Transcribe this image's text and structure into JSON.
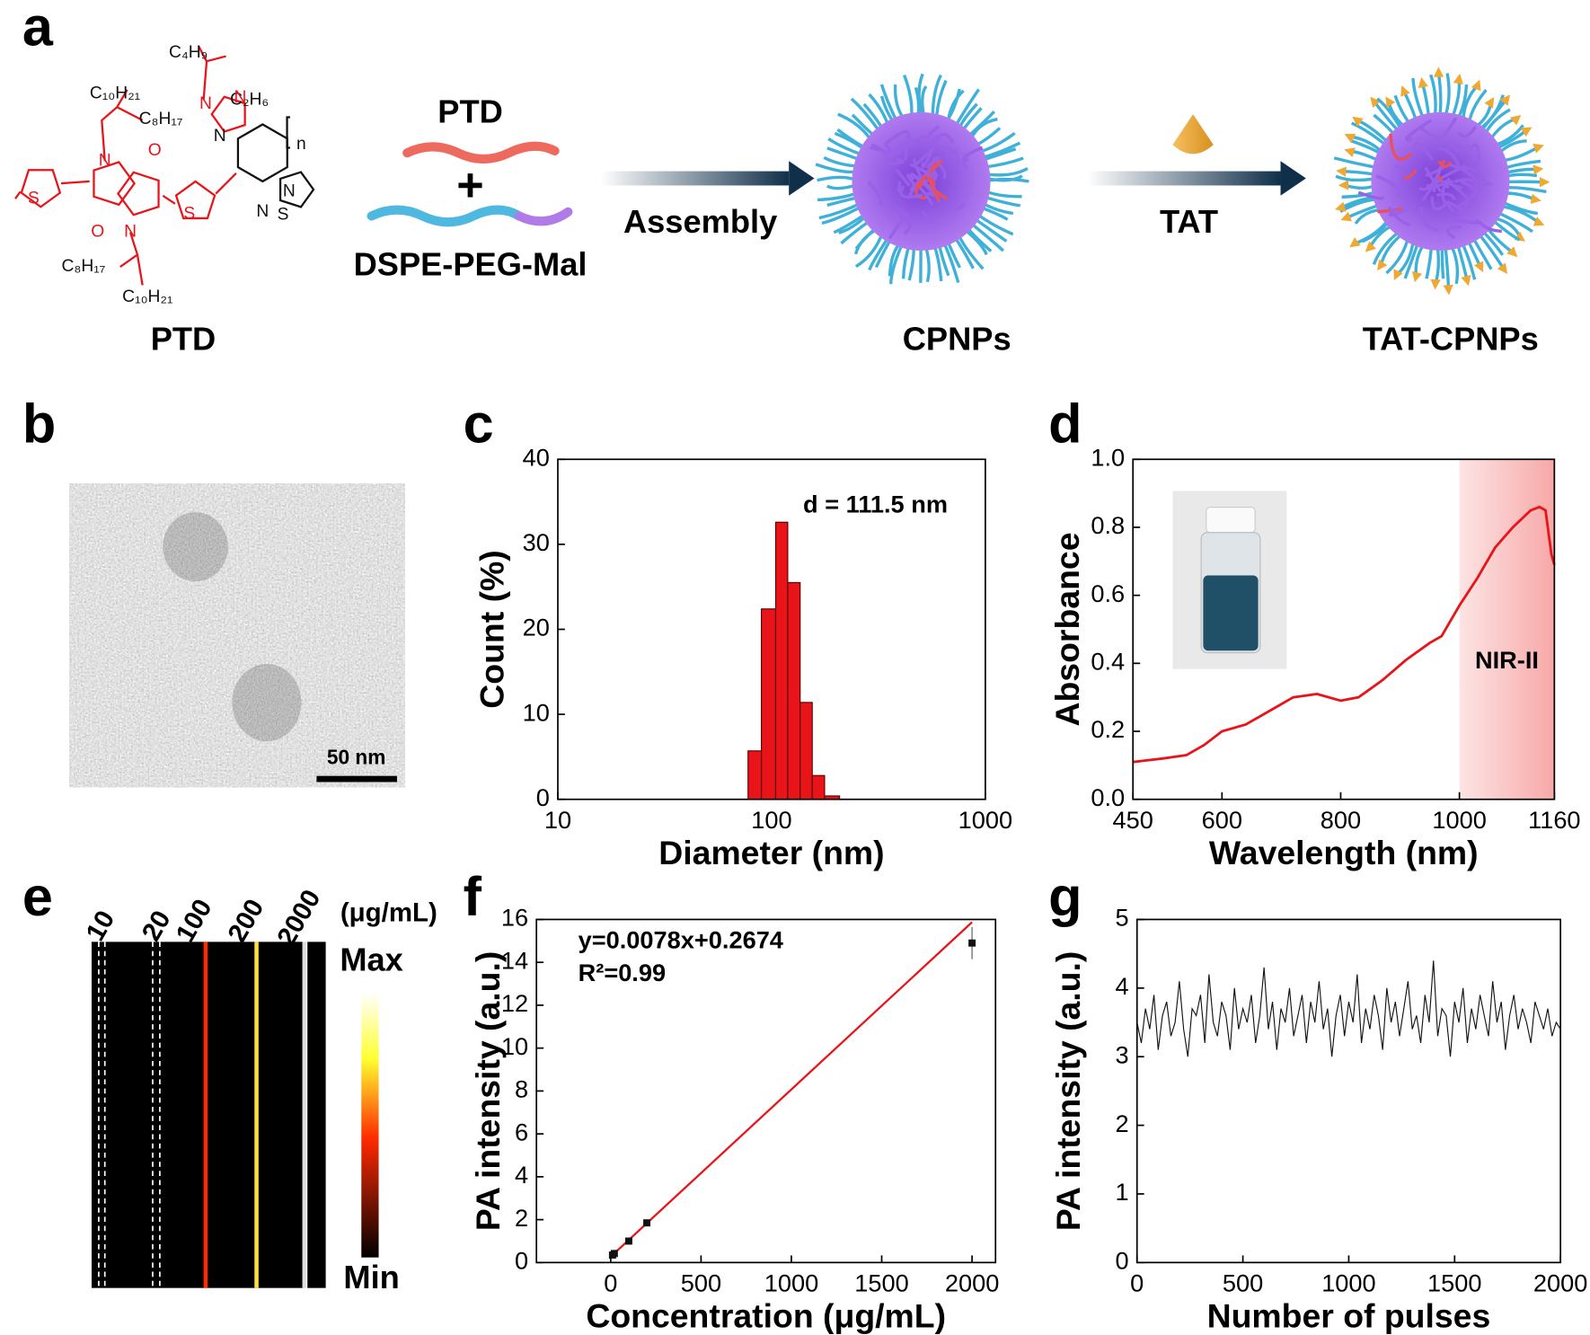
{
  "panel_labels": [
    "a",
    "b",
    "c",
    "d",
    "e",
    "f",
    "g"
  ],
  "scheme": {
    "monomer_label": "PTD",
    "polymer_label": "PTD",
    "plus": "+",
    "lipid_label": "DSPE-PEG-Mal",
    "step1": "Assembly",
    "step2": "TAT",
    "product1": "CPNPs",
    "product2": "TAT-CPNPs",
    "chains": [
      "C₄H₉",
      "C₂H₆",
      "C₁₀H₂₁",
      "C₈H₁₇",
      "C₈H₁₇",
      "C₁₀H₂₁"
    ],
    "atoms": [
      "S",
      "N",
      "O",
      "O",
      "N",
      "S",
      "N",
      "N",
      "N",
      "N",
      "N",
      "S",
      "n"
    ]
  },
  "tem": {
    "scale_bar": "50 nm"
  },
  "pa_image": {
    "concentrations": [
      "10",
      "20",
      "100",
      "200",
      "2000"
    ],
    "unit": "(μg/mL)",
    "max_label": "Max",
    "min_label": "Min"
  },
  "chart_data": [
    {
      "type": "histogram",
      "xlabel": "Diameter (nm)",
      "ylabel": "Count (%)",
      "annotation": "d = 111.5 nm",
      "color": "#e8141a",
      "xlog": true,
      "bins": [
        77.6,
        89.6,
        104.5,
        119,
        136,
        155,
        177,
        208
      ],
      "values": [
        5.7,
        22.4,
        32.6,
        25.5,
        11.4,
        2.8,
        0.4
      ],
      "xlim": [
        10,
        1000
      ],
      "xticks": [
        10,
        100,
        1000
      ],
      "ylim": [
        0,
        40
      ],
      "yticks": [
        0,
        10,
        20,
        30,
        40
      ]
    },
    {
      "type": "line",
      "xlabel": "Wavelength (nm)",
      "ylabel": "Absorbance",
      "color": "#e8141a",
      "region": [
        1000,
        1160
      ],
      "region_label": "NIR-II",
      "x": [
        450,
        500,
        540,
        570,
        600,
        640,
        680,
        720,
        760,
        800,
        830,
        870,
        910,
        950,
        970,
        1000,
        1030,
        1060,
        1090,
        1120,
        1135,
        1145,
        1155,
        1160
      ],
      "values": [
        0.11,
        0.12,
        0.13,
        0.16,
        0.2,
        0.22,
        0.26,
        0.3,
        0.31,
        0.29,
        0.3,
        0.35,
        0.41,
        0.46,
        0.48,
        0.57,
        0.65,
        0.74,
        0.8,
        0.85,
        0.86,
        0.85,
        0.72,
        0.69
      ],
      "xlim": [
        450,
        1160
      ],
      "xticks": [
        450,
        600,
        800,
        1000,
        1160
      ],
      "ylim": [
        0,
        1
      ],
      "yticks": [
        {
          "value": 0,
          "label": "0.0"
        },
        0.2,
        0.4,
        0.6,
        0.8,
        {
          "value": 1,
          "label": "1.0"
        }
      ]
    },
    {
      "type": "scatter",
      "xlabel": "Concentration (μg/mL)",
      "ylabel": "PA intensity (a.u.)",
      "annotation": "y=0.0078x+0.2674",
      "annotation2": "R²=0.99",
      "color": "#111111",
      "fit_color": "#e8141a",
      "x": [
        10,
        20,
        100,
        200,
        2000
      ],
      "values": [
        0.35,
        0.42,
        1.0,
        1.85,
        14.9
      ],
      "errors": [
        0.08,
        0.08,
        0.1,
        0.1,
        0.75
      ],
      "fit": {
        "x": [
          0,
          2000
        ],
        "values": [
          0.27,
          15.87
        ]
      },
      "xlim": [
        -411,
        2130
      ],
      "xticks": [
        0,
        500,
        1000,
        1500,
        2000
      ],
      "ylim": [
        0,
        16
      ],
      "yticks": [
        0,
        2,
        4,
        6,
        8,
        10,
        12,
        14,
        16
      ]
    },
    {
      "type": "line",
      "xlabel": "Number of pulses",
      "ylabel": "PA intensity (a.u.)",
      "color": "#111111",
      "x": [
        0,
        20,
        40,
        60,
        80,
        100,
        120,
        140,
        160,
        180,
        200,
        220,
        240,
        260,
        280,
        300,
        320,
        340,
        360,
        380,
        400,
        420,
        440,
        460,
        480,
        500,
        520,
        540,
        560,
        580,
        600,
        620,
        640,
        660,
        680,
        700,
        720,
        740,
        760,
        780,
        800,
        820,
        840,
        860,
        880,
        900,
        920,
        940,
        960,
        980,
        1000,
        1020,
        1040,
        1060,
        1080,
        1100,
        1120,
        1140,
        1160,
        1180,
        1200,
        1220,
        1240,
        1260,
        1280,
        1300,
        1320,
        1340,
        1360,
        1380,
        1400,
        1420,
        1440,
        1460,
        1480,
        1500,
        1520,
        1540,
        1560,
        1580,
        1600,
        1620,
        1640,
        1660,
        1680,
        1700,
        1720,
        1740,
        1760,
        1780,
        1800,
        1820,
        1840,
        1860,
        1880,
        1900,
        1920,
        1940,
        1960,
        1980,
        2000
      ],
      "values": [
        3.5,
        3.2,
        3.7,
        3.4,
        3.9,
        3.1,
        3.6,
        3.8,
        3.3,
        3.5,
        4.1,
        3.4,
        3.0,
        3.7,
        3.6,
        3.9,
        3.2,
        4.2,
        3.5,
        3.3,
        3.8,
        3.6,
        3.1,
        4.0,
        3.4,
        3.7,
        3.5,
        3.9,
        3.2,
        3.6,
        4.3,
        3.4,
        3.8,
        3.1,
        3.7,
        3.5,
        4.0,
        3.3,
        3.6,
        3.9,
        3.2,
        3.8,
        3.5,
        4.1,
        3.4,
        3.7,
        3.0,
        3.6,
        3.9,
        3.3,
        3.8,
        3.5,
        4.2,
        3.2,
        3.7,
        3.4,
        3.9,
        3.6,
        3.1,
        4.0,
        3.5,
        3.8,
        3.3,
        3.7,
        4.1,
        3.4,
        3.6,
        3.2,
        3.9,
        3.5,
        4.4,
        3.3,
        3.7,
        3.6,
        3.0,
        3.8,
        3.5,
        4.0,
        3.2,
        3.7,
        3.4,
        3.9,
        3.6,
        3.3,
        4.1,
        3.5,
        3.8,
        3.1,
        3.6,
        3.9,
        3.4,
        3.7,
        3.5,
        3.2,
        3.8,
        3.6,
        3.4,
        3.7,
        3.3,
        3.5,
        3.4
      ],
      "xlim": [
        0,
        2000
      ],
      "xticks": [
        0,
        500,
        1000,
        1500,
        2000
      ],
      "ylim": [
        0,
        5
      ],
      "yticks": [
        0,
        1,
        2,
        3,
        4,
        5
      ]
    }
  ]
}
